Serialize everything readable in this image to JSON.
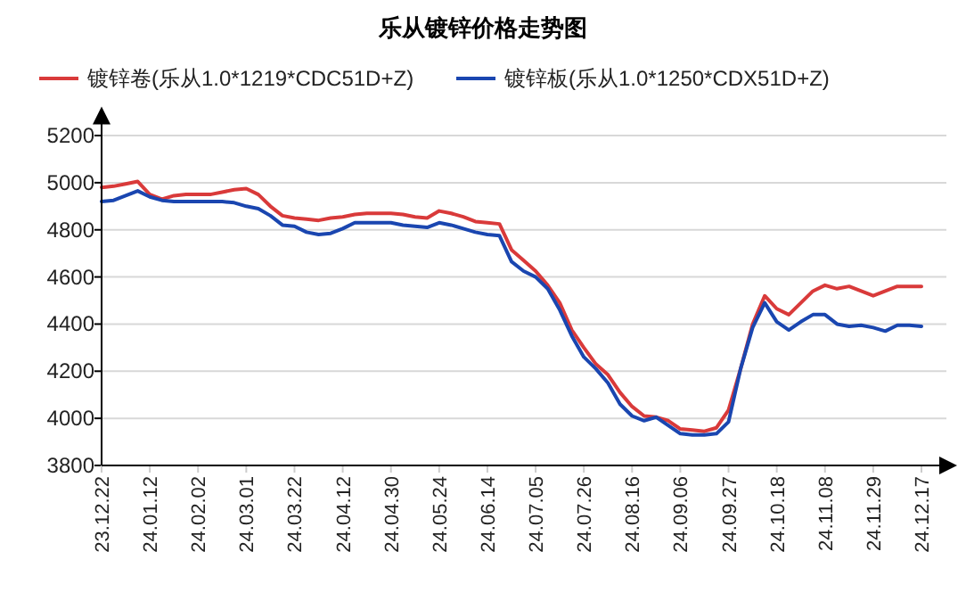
{
  "chart_data": {
    "type": "line",
    "title": "乐从镀锌价格走势图",
    "categories": [
      "23.12.22",
      null,
      null,
      null,
      "24.01.12",
      null,
      null,
      null,
      "24.02.02",
      null,
      null,
      null,
      "24.03.01",
      null,
      null,
      null,
      "24.03.22",
      null,
      null,
      null,
      "24.04.12",
      null,
      null,
      null,
      "24.04.30",
      null,
      null,
      null,
      "24.05.24",
      null,
      null,
      null,
      "24.06.14",
      null,
      null,
      null,
      "24.07.05",
      null,
      null,
      null,
      "24.07.26",
      null,
      null,
      null,
      "24.08.16",
      null,
      null,
      null,
      "24.09.06",
      null,
      null,
      null,
      "24.09.27",
      null,
      null,
      null,
      "24.10.18",
      null,
      null,
      null,
      "24.11.08",
      null,
      null,
      null,
      "24.11.29",
      null,
      null,
      null,
      "24.12.17"
    ],
    "series": [
      {
        "name": "镀锌卷(乐从1.0*1219*CDC51D+Z)",
        "color": "#d93a3a",
        "values": [
          4980,
          4985,
          4995,
          5005,
          4950,
          4930,
          4945,
          4950,
          4950,
          4950,
          4960,
          4970,
          4975,
          4950,
          4900,
          4860,
          4850,
          4845,
          4840,
          4850,
          4855,
          4865,
          4870,
          4870,
          4870,
          4865,
          4855,
          4850,
          4880,
          4870,
          4855,
          4835,
          4830,
          4825,
          4715,
          4670,
          4625,
          4565,
          4490,
          4375,
          4300,
          4230,
          4185,
          4110,
          4050,
          4010,
          4005,
          3990,
          3955,
          3950,
          3945,
          3960,
          4035,
          4210,
          4400,
          4520,
          4465,
          4440,
          4490,
          4540,
          4565,
          4550,
          4560,
          4540,
          4520,
          4540,
          4560,
          4560,
          4560
        ]
      },
      {
        "name": "镀锌板(乐从1.0*1250*CDX51D+Z)",
        "color": "#1a46b0",
        "values": [
          4920,
          4925,
          4945,
          4965,
          4940,
          4925,
          4920,
          4920,
          4920,
          4920,
          4920,
          4915,
          4900,
          4890,
          4860,
          4820,
          4815,
          4790,
          4780,
          4785,
          4805,
          4830,
          4830,
          4830,
          4830,
          4820,
          4815,
          4810,
          4830,
          4820,
          4805,
          4790,
          4780,
          4775,
          4665,
          4625,
          4600,
          4550,
          4460,
          4350,
          4260,
          4210,
          4150,
          4060,
          4010,
          3990,
          4005,
          3970,
          3935,
          3930,
          3930,
          3935,
          3985,
          4210,
          4385,
          4490,
          4410,
          4375,
          4410,
          4440,
          4440,
          4400,
          4390,
          4395,
          4385,
          4370,
          4395,
          4395,
          4390
        ]
      }
    ],
    "ylim": [
      3800,
      5300
    ],
    "yticks": [
      3800,
      4000,
      4200,
      4400,
      4600,
      4800,
      5000,
      5200
    ],
    "grid": "y",
    "legend": "top",
    "marker": "none",
    "line_style": "solid"
  }
}
